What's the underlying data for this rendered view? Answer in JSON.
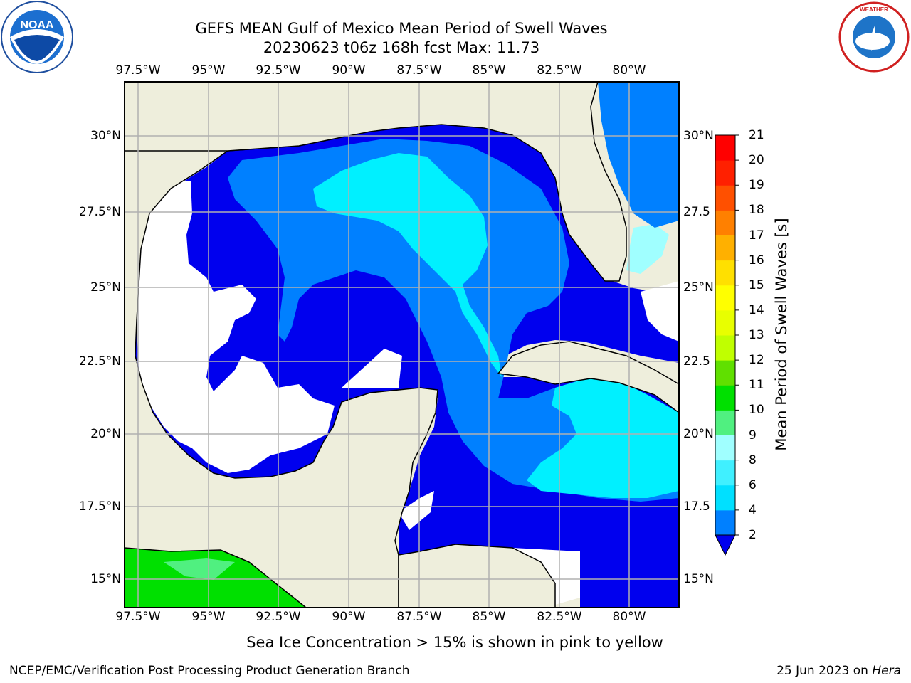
{
  "title": {
    "line1": "GEFS MEAN Gulf of Mexico Mean Period of Swell Waves",
    "line2": "20230623 t06z 168h fcst   Max: 11.73"
  },
  "map": {
    "lon_ticks": [
      "97.5°W",
      "95°W",
      "92.5°W",
      "90°W",
      "87.5°W",
      "85°W",
      "82.5°W",
      "80°W"
    ],
    "lat_ticks_left": [
      "30°N",
      "27.5°N",
      "25°N",
      "22.5°N",
      "20°N",
      "17.5°N",
      "15°N"
    ],
    "lat_ticks_right": [
      "30°N",
      "27.5",
      "25°N",
      "22.5",
      "20°N",
      "17.5",
      "15°N"
    ],
    "land_color": "#eeeedc",
    "gridlines": true
  },
  "colorbar": {
    "label": "Mean Period of Swell Waves [s]",
    "ticks": [
      "2",
      "4",
      "6",
      "8",
      "9",
      "10",
      "11",
      "12",
      "13",
      "14",
      "15",
      "16",
      "17",
      "18",
      "19",
      "20",
      "21"
    ],
    "colors": [
      "#0000ee",
      "#0080ff",
      "#00e0ff",
      "#40f0ff",
      "#a0ffff",
      "#50f080",
      "#00e000",
      "#60e000",
      "#c0ff00",
      "#e8ff00",
      "#ffff00",
      "#ffe000",
      "#ffb000",
      "#ff8000",
      "#ff5000",
      "#ff2000",
      "#ff0000"
    ],
    "extend": "min"
  },
  "footnote": "Sea Ice Concentration > 15% is shown in pink to yellow",
  "credit_left": "NCEP/EMC/Verification Post Processing Product Generation Branch",
  "credit_right_date": "25 Jun 2023 on ",
  "credit_right_host": "Hera",
  "logos": {
    "left": "noaa-logo",
    "right": "national-weather-service-logo"
  }
}
